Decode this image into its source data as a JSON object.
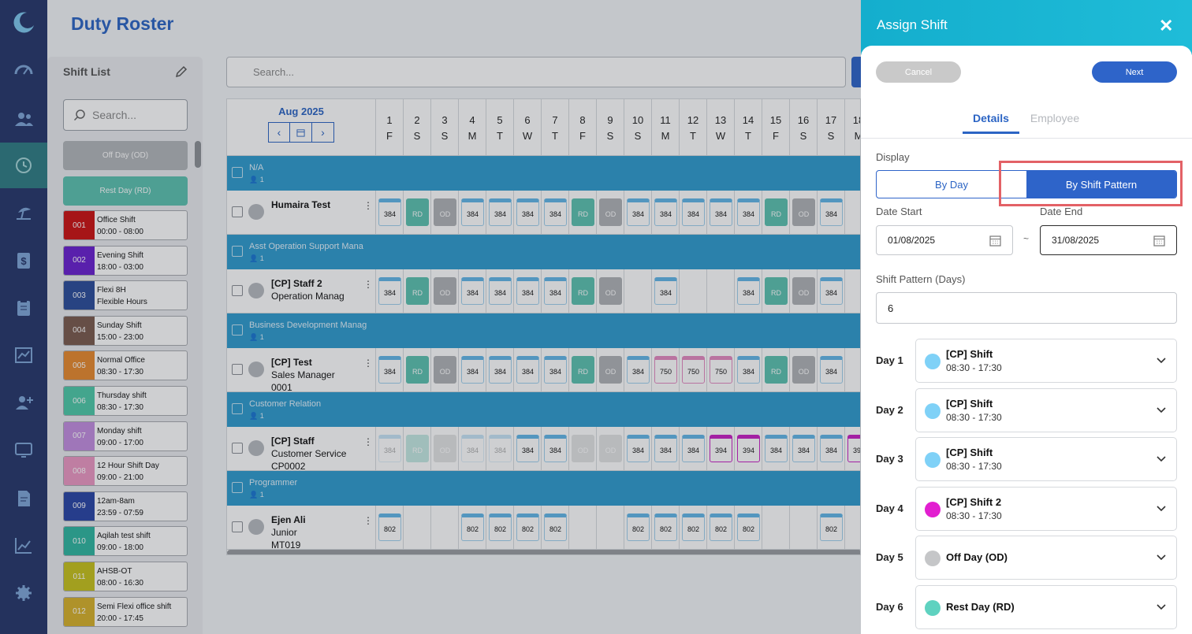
{
  "app": {
    "page_title": "Duty Roster"
  },
  "nav": {
    "icons": [
      "dashboard-icon",
      "users-icon",
      "history-icon",
      "leave-icon",
      "payroll-icon",
      "clipboard-icon",
      "chart-icon",
      "add-user-icon",
      "screen-icon",
      "document-icon",
      "trend-icon",
      "settings-icon"
    ],
    "active": "history-icon"
  },
  "shift_list": {
    "title": "Shift List",
    "search_placeholder": "Search...",
    "off_day": "Off Day (OD)",
    "rest_day": "Rest Day (RD)",
    "items": [
      {
        "code": "001",
        "name": "Office Shift",
        "time": "00:00 - 08:00",
        "color": "#cc1111"
      },
      {
        "code": "002",
        "name": "Evening Shift",
        "time": "18:00 - 03:00",
        "color": "#6a1fd0"
      },
      {
        "code": "003",
        "name": "Flexi 8H",
        "time": "Flexible Hours",
        "color": "#2b4c9a"
      },
      {
        "code": "004",
        "name": "Sunday Shift",
        "time": "15:00 - 23:00",
        "color": "#7a5a4d"
      },
      {
        "code": "005",
        "name": "Normal Office",
        "time": "08:30 - 17:30",
        "color": "#e88a2e"
      },
      {
        "code": "006",
        "name": "Thursday shift",
        "time": "08:30 - 17:30",
        "color": "#4ec9a8"
      },
      {
        "code": "007",
        "name": "Monday shift",
        "time": "09:00 - 17:00",
        "color": "#c38ee0"
      },
      {
        "code": "008",
        "name": "12 Hour Shift Day",
        "time": "09:00 - 21:00",
        "color": "#ec98c3"
      },
      {
        "code": "009",
        "name": "12am-8am",
        "time": "23:59 - 07:59",
        "color": "#2844a6"
      },
      {
        "code": "010",
        "name": "Aqilah test shift",
        "time": "09:00 - 18:00",
        "color": "#2fb7a0"
      },
      {
        "code": "011",
        "name": "AHSB-OT",
        "time": "08:00 - 16:30",
        "color": "#c7c21c"
      },
      {
        "code": "012",
        "name": "Semi Flexi office shift",
        "time": "20:00 - 17:45",
        "color": "#d8b12a"
      }
    ]
  },
  "roster": {
    "search_placeholder": "Search...",
    "month": "Aug 2025",
    "days": [
      {
        "d": "1",
        "w": "F"
      },
      {
        "d": "2",
        "w": "S"
      },
      {
        "d": "3",
        "w": "S"
      },
      {
        "d": "4",
        "w": "M"
      },
      {
        "d": "5",
        "w": "T"
      },
      {
        "d": "6",
        "w": "W"
      },
      {
        "d": "7",
        "w": "T"
      },
      {
        "d": "8",
        "w": "F"
      },
      {
        "d": "9",
        "w": "S"
      },
      {
        "d": "10",
        "w": "S"
      },
      {
        "d": "11",
        "w": "M"
      },
      {
        "d": "12",
        "w": "T"
      },
      {
        "d": "13",
        "w": "W"
      },
      {
        "d": "14",
        "w": "T"
      },
      {
        "d": "15",
        "w": "F"
      },
      {
        "d": "16",
        "w": "S"
      },
      {
        "d": "17",
        "w": "S"
      },
      {
        "d": "18",
        "w": "M"
      }
    ],
    "groups": [
      {
        "name": "N/A",
        "count": "1",
        "employees": [
          {
            "name": "Humaira Test",
            "lines": [],
            "cells": [
              "384",
              "RD",
              "OD",
              "384",
              "384",
              "384",
              "384",
              "RD",
              "OD",
              "384",
              "384",
              "384",
              "384",
              "384",
              "RD",
              "OD",
              "384",
              ""
            ]
          }
        ]
      },
      {
        "name": "Asst Operation Support Mana",
        "count": "1",
        "employees": [
          {
            "name": "[CP] Staff 2",
            "lines": [
              "Operation Manag"
            ],
            "cells": [
              "384",
              "RD",
              "OD",
              "384",
              "384",
              "384",
              "384",
              "RD",
              "OD",
              "",
              "384",
              "",
              "",
              "384",
              "RD",
              "OD",
              "384",
              ""
            ]
          }
        ]
      },
      {
        "name": "Business Development Manag",
        "count": "1",
        "employees": [
          {
            "name": "[CP] Test",
            "lines": [
              "Sales Manager",
              "0001"
            ],
            "cells": [
              "384",
              "RD",
              "OD",
              "384",
              "384",
              "384",
              "384",
              "RD",
              "OD",
              "384",
              "750",
              "750",
              "750",
              "384",
              "RD",
              "OD",
              "384",
              ""
            ]
          }
        ]
      },
      {
        "name": "Customer Relation",
        "count": "1",
        "employees": [
          {
            "name": "[CP] Staff",
            "lines": [
              "Customer Service",
              "CP0002"
            ],
            "cells": [
              "384",
              "RD",
              "OD",
              "384",
              "384",
              "384",
              "384",
              "OD",
              "OD",
              "384",
              "384",
              "384",
              "394",
              "394",
              "384",
              "384",
              "384",
              "394"
            ]
          }
        ]
      },
      {
        "name": "Programmer",
        "count": "1",
        "employees": [
          {
            "name": "Ejen Ali",
            "lines": [
              "Junior",
              "MT019"
            ],
            "cells": [
              "802",
              "",
              "",
              "802",
              "802",
              "802",
              "802",
              "",
              "",
              "802",
              "802",
              "802",
              "802",
              "802",
              "",
              "",
              "802",
              ""
            ]
          }
        ]
      }
    ]
  },
  "drawer": {
    "title": "Assign Shift",
    "cancel": "Cancel",
    "next": "Next",
    "tabs": [
      "Details",
      "Employee"
    ],
    "display_label": "Display",
    "by_day": "By Day",
    "by_shift_pattern": "By Shift Pattern",
    "date_start_label": "Date Start",
    "date_end_label": "Date End",
    "date_start": "01/08/2025",
    "date_end": "31/08/2025",
    "tilde": "~",
    "pattern_label": "Shift Pattern (Days)",
    "pattern_days": "6",
    "days": [
      {
        "label": "Day 1",
        "name": "[CP] Shift",
        "time": "08:30 - 17:30",
        "color": "#7fd1f7"
      },
      {
        "label": "Day 2",
        "name": "[CP] Shift",
        "time": "08:30 - 17:30",
        "color": "#7fd1f7"
      },
      {
        "label": "Day 3",
        "name": "[CP] Shift",
        "time": "08:30 - 17:30",
        "color": "#7fd1f7"
      },
      {
        "label": "Day 4",
        "name": "[CP] Shift 2",
        "time": "08:30 - 17:30",
        "color": "#e21fd0"
      },
      {
        "label": "Day 5",
        "name": "Off Day (OD)",
        "time": "",
        "color": "#c5c6c8"
      },
      {
        "label": "Day 6",
        "name": "Rest Day (RD)",
        "time": "",
        "color": "#5fd2c0"
      }
    ]
  }
}
